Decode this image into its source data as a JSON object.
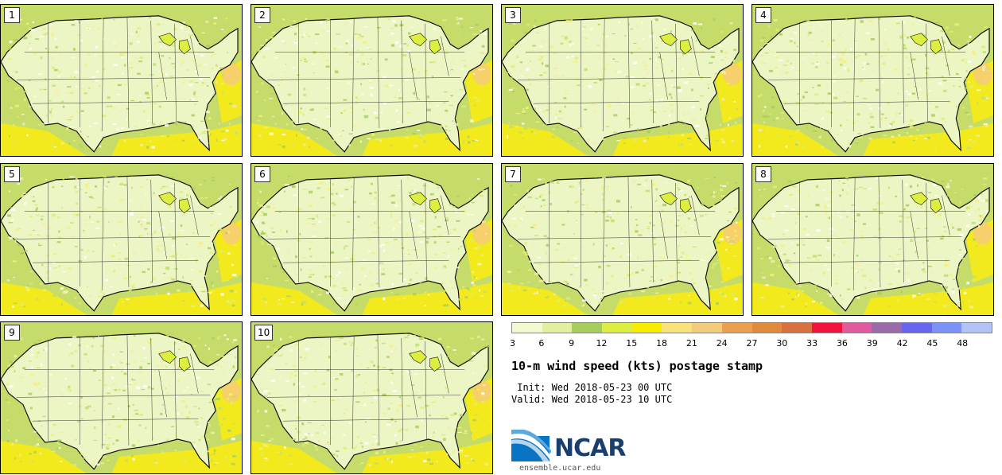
{
  "panels": [
    {
      "label": "1"
    },
    {
      "label": "2"
    },
    {
      "label": "3"
    },
    {
      "label": "4"
    },
    {
      "label": "5"
    },
    {
      "label": "6"
    },
    {
      "label": "7"
    },
    {
      "label": "8"
    },
    {
      "label": "9"
    },
    {
      "label": "10"
    }
  ],
  "colorbar": {
    "colors": [
      "#f3f9d0",
      "#e0f0a0",
      "#a6cc5c",
      "#dcee40",
      "#f8ec00",
      "#f8e27a",
      "#f2cc7a",
      "#eaa050",
      "#e08a3c",
      "#d87040",
      "#f0143c",
      "#e05aa0",
      "#9a6aaa",
      "#6666f0",
      "#7a92f6",
      "#b0c4f8"
    ],
    "ticks": [
      "3",
      "6",
      "9",
      "12",
      "15",
      "18",
      "21",
      "24",
      "27",
      "30",
      "33",
      "36",
      "39",
      "42",
      "45",
      "48"
    ]
  },
  "title": "10-m wind speed (kts) postage stamp",
  "init_line": " Init: Wed 2018-05-23 00 UTC",
  "valid_line": "Valid: Wed 2018-05-23 10 UTC",
  "logo_text": "NCAR",
  "footer_url": "ensemble.ucar.edu"
}
